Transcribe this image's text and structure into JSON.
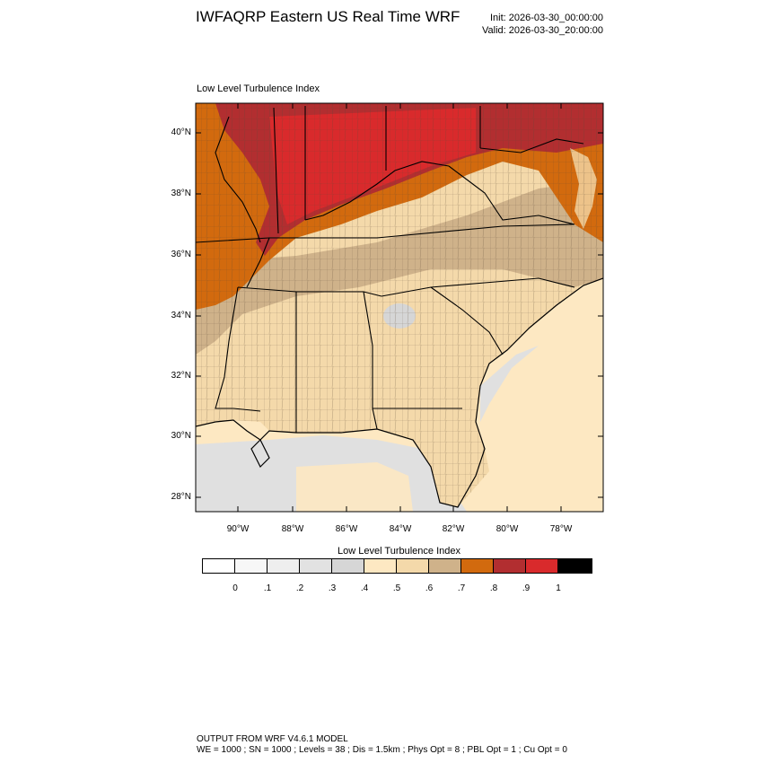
{
  "title": "IWFAQRP Eastern US Real Time WRF",
  "init_label": "Init: 2026-03-30_00:00:00",
  "valid_label": "Valid: 2026-03-30_20:00:00",
  "plot_title": "Low Level Turbulence Index",
  "latitude_labels": [
    "40°N",
    "38°N",
    "36°N",
    "34°N",
    "32°N",
    "30°N",
    "28°N"
  ],
  "longitude_labels": [
    "90°W",
    "88°W",
    "86°W",
    "84°W",
    "82°W",
    "80°W",
    "78°W"
  ],
  "colorbar": {
    "title": "Low Level Turbulence Index",
    "labels": [
      "0",
      ".1",
      ".2",
      ".3",
      ".4",
      ".5",
      ".6",
      ".7",
      ".8",
      ".9",
      "1"
    ],
    "colors": [
      "#ffffff",
      "#f7f7f7",
      "#eeeeee",
      "#e2e2e2",
      "#d6d6d6",
      "#fde8c2",
      "#f4d9aa",
      "#cfb28a",
      "#d26a0e",
      "#b22e30",
      "#d92a2c",
      "#000000"
    ]
  },
  "footer": {
    "line1": "OUTPUT FROM WRF V4.6.1 MODEL",
    "line2": "WE = 1000 ; SN = 1000 ; Levels = 38 ; Dis = 1.5km ; Phys Opt = 8 ; PBL Opt = 1 ; Cu Opt = 0"
  }
}
